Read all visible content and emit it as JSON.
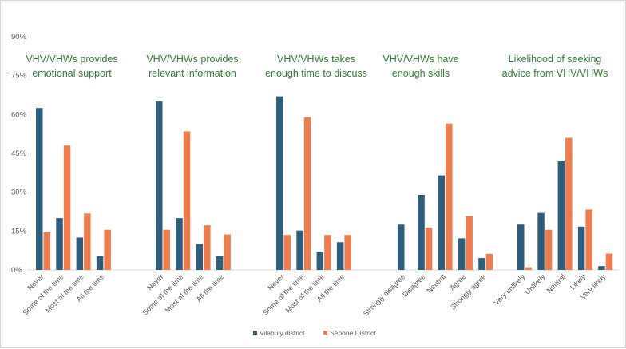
{
  "chart_data": {
    "type": "bar",
    "ylim": [
      0,
      90
    ],
    "yticks": [
      "0%",
      "15%",
      "30%",
      "45%",
      "60%",
      "75%",
      "90%"
    ],
    "colors": {
      "vilabuly": "#2f5d7c",
      "sepone": "#ed7d4e",
      "title": "#2e7d32"
    },
    "legend": [
      {
        "name": "Vilabuly district",
        "color": "#2f5d7c"
      },
      {
        "name": "Sepone District",
        "color": "#ed7d4e"
      }
    ],
    "panels": [
      {
        "title_lines": [
          "VHV/VHWs provides",
          "emotional support"
        ],
        "categories": [
          "Never",
          "Some of the time",
          "Most of the time",
          "All the time"
        ],
        "series": [
          {
            "name": "Vilabuly district",
            "values": [
              62.5,
              20,
              12.5,
              5.3
            ]
          },
          {
            "name": "Sepone District",
            "values": [
              14.5,
              48,
              21.8,
              15.5
            ]
          }
        ]
      },
      {
        "title_lines": [
          "VHV/VHWs provides",
          "relevant information"
        ],
        "categories": [
          "Never",
          "Some of the time",
          "Most of the time",
          "All the time"
        ],
        "series": [
          {
            "name": "Vilabuly district",
            "values": [
              65,
              20,
              10,
              5.3
            ]
          },
          {
            "name": "Sepone District",
            "values": [
              15.5,
              53.5,
              17.2,
              13.7
            ]
          }
        ]
      },
      {
        "title_lines": [
          "VHV/VHWs takes",
          "enough time to discuss"
        ],
        "categories": [
          "Never",
          "Some of the time",
          "Most of the time",
          "All the time"
        ],
        "series": [
          {
            "name": "Vilabuly district",
            "values": [
              67,
              15.2,
              6.8,
              10.7
            ]
          },
          {
            "name": "Sepone District",
            "values": [
              13.5,
              59,
              13.5,
              13.5
            ]
          }
        ]
      },
      {
        "title_lines": [
          "VHV/VHWs have",
          "enough skills"
        ],
        "categories": [
          "Strongly disagree",
          "Disagree",
          "Neutral",
          "Agree",
          "Strongly agree"
        ],
        "series": [
          {
            "name": "Vilabuly district",
            "values": [
              17.5,
              29,
              36.5,
              12.2,
              4.6
            ]
          },
          {
            "name": "Sepone District",
            "values": [
              0,
              16.3,
              56.5,
              20.8,
              6.2
            ]
          }
        ]
      },
      {
        "title_lines": [
          "Likelihood of seeking",
          "advice from VHV/VHWs"
        ],
        "categories": [
          "Very unlikely",
          "Unlikely",
          "Neutral",
          "Likely",
          "Very likely"
        ],
        "series": [
          {
            "name": "Vilabuly district",
            "values": [
              17.5,
              22,
              42,
              16.7,
              1.5
            ]
          },
          {
            "name": "Sepone District",
            "values": [
              1,
              15.5,
              51,
              23.3,
              6.3
            ]
          }
        ]
      }
    ]
  }
}
